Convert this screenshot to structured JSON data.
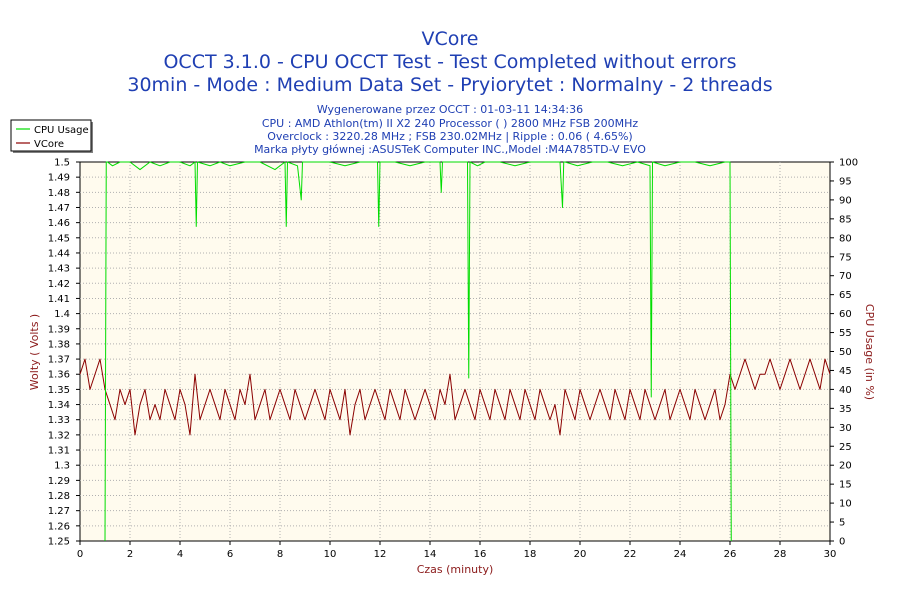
{
  "chart_data": {
    "type": "line",
    "title": "VCore",
    "subtitle_1": "OCCT 3.1.0 - CPU OCCT Test - Test Completed without errors",
    "subtitle_2": "30min - Mode : Medium Data Set - Pryiorytet : Normalny - 2 threads",
    "info": [
      "Wygenerowane przez OCCT : 01-03-11 14:34:36",
      "CPU : AMD Athlon(tm) II X2 240 Processor (  ) 2800 MHz FSB 200MHz",
      "Overclock : 3220.28 MHz ; FSB 230.02MHz | Ripple : 0.06 ( 4.65%)",
      "Marka płyty głównej :ASUSTeK Computer INC.,Model :M4A785TD-V EVO"
    ],
    "xlabel": "Czas (minuty)",
    "ylabel_left": "Wolty ( Volts )",
    "ylabel_right": "CPU Usage (in %)",
    "xlim": [
      0,
      30
    ],
    "ylim_left": [
      1.25,
      1.5
    ],
    "ylim_right": [
      0,
      100
    ],
    "x_ticks": [
      "0",
      "2",
      "4",
      "6",
      "8",
      "10",
      "12",
      "14",
      "16",
      "18",
      "20",
      "22",
      "24",
      "26",
      "28",
      "30"
    ],
    "y_left_ticks": [
      "1.25",
      "1.26",
      "1.27",
      "1.28",
      "1.29",
      "1.3",
      "1.31",
      "1.32",
      "1.33",
      "1.34",
      "1.35",
      "1.36",
      "1.37",
      "1.38",
      "1.39",
      "1.4",
      "1.41",
      "1.42",
      "1.43",
      "1.44",
      "1.45",
      "1.46",
      "1.47",
      "1.48",
      "1.49",
      "1.5"
    ],
    "y_right_ticks": [
      "0",
      "5",
      "10",
      "15",
      "20",
      "25",
      "30",
      "35",
      "40",
      "45",
      "50",
      "55",
      "60",
      "65",
      "70",
      "75",
      "80",
      "85",
      "90",
      "95",
      "100"
    ],
    "grid": true,
    "legend_position": "top-left",
    "series": [
      {
        "name": "CPU Usage",
        "color": "#00dd00",
        "axis": "right",
        "x": [
          0.0,
          1.0,
          1.05,
          1.1,
          1.3,
          1.6,
          2.0,
          2.4,
          2.8,
          3.2,
          3.6,
          4.0,
          4.4,
          4.6,
          4.65,
          4.7,
          5.2,
          5.6,
          6.0,
          6.6,
          7.2,
          7.8,
          8.2,
          8.25,
          8.3,
          8.7,
          8.85,
          8.9,
          9.4,
          10.0,
          10.6,
          11.2,
          11.9,
          11.95,
          12.0,
          12.6,
          13.2,
          13.8,
          14.4,
          14.45,
          14.5,
          15.0,
          15.5,
          15.55,
          15.6,
          15.9,
          16.2,
          16.8,
          17.4,
          18.0,
          18.6,
          19.2,
          19.3,
          19.35,
          19.4,
          19.9,
          20.5,
          21.1,
          21.7,
          22.3,
          22.8,
          22.85,
          22.9,
          23.4,
          24.0,
          24.6,
          25.2,
          25.8,
          26.0,
          26.05,
          26.1
        ],
        "y": [
          null,
          0,
          100,
          100,
          99,
          100,
          100,
          98,
          100,
          99,
          100,
          100,
          99,
          100,
          83,
          100,
          99,
          100,
          99,
          100,
          100,
          98,
          100,
          83,
          100,
          99,
          90,
          100,
          100,
          100,
          99,
          100,
          100,
          83,
          100,
          100,
          99,
          100,
          100,
          92,
          100,
          100,
          100,
          43,
          100,
          99,
          100,
          100,
          99,
          100,
          100,
          100,
          88,
          100,
          100,
          99,
          100,
          100,
          99,
          100,
          99,
          38,
          100,
          99,
          100,
          100,
          99,
          100,
          100,
          0,
          null
        ]
      },
      {
        "name": "VCore",
        "color": "#8b0000",
        "axis": "left",
        "x": [
          0.0,
          0.2,
          0.4,
          0.6,
          0.8,
          1.0,
          1.2,
          1.4,
          1.6,
          1.8,
          2.0,
          2.2,
          2.4,
          2.6,
          2.8,
          3.0,
          3.2,
          3.4,
          3.6,
          3.8,
          4.0,
          4.2,
          4.4,
          4.6,
          4.8,
          5.0,
          5.2,
          5.4,
          5.6,
          5.8,
          6.0,
          6.2,
          6.4,
          6.6,
          6.8,
          7.0,
          7.2,
          7.4,
          7.6,
          7.8,
          8.0,
          8.2,
          8.4,
          8.6,
          8.8,
          9.0,
          9.2,
          9.4,
          9.6,
          9.8,
          10.0,
          10.2,
          10.4,
          10.6,
          10.8,
          11.0,
          11.2,
          11.4,
          11.6,
          11.8,
          12.0,
          12.2,
          12.4,
          12.6,
          12.8,
          13.0,
          13.2,
          13.4,
          13.6,
          13.8,
          14.0,
          14.2,
          14.4,
          14.6,
          14.8,
          15.0,
          15.2,
          15.4,
          15.6,
          15.8,
          16.0,
          16.2,
          16.4,
          16.6,
          16.8,
          17.0,
          17.2,
          17.4,
          17.6,
          17.8,
          18.0,
          18.2,
          18.4,
          18.6,
          18.8,
          19.0,
          19.2,
          19.4,
          19.6,
          19.8,
          20.0,
          20.2,
          20.4,
          20.6,
          20.8,
          21.0,
          21.2,
          21.4,
          21.6,
          21.8,
          22.0,
          22.2,
          22.4,
          22.6,
          22.8,
          23.0,
          23.2,
          23.4,
          23.6,
          23.8,
          24.0,
          24.2,
          24.4,
          24.6,
          24.8,
          25.0,
          25.2,
          25.4,
          25.6,
          25.8,
          26.0,
          26.2,
          26.4,
          26.6,
          26.8,
          27.0,
          27.2,
          27.4,
          27.6,
          27.8,
          28.0,
          28.2,
          28.4,
          28.6,
          28.8,
          29.0,
          29.2,
          29.4,
          29.6,
          29.8,
          30.0
        ],
        "y": [
          1.36,
          1.37,
          1.35,
          1.36,
          1.37,
          1.35,
          1.34,
          1.33,
          1.35,
          1.34,
          1.35,
          1.32,
          1.34,
          1.35,
          1.33,
          1.34,
          1.33,
          1.35,
          1.34,
          1.33,
          1.35,
          1.34,
          1.32,
          1.36,
          1.33,
          1.34,
          1.35,
          1.34,
          1.33,
          1.35,
          1.34,
          1.33,
          1.35,
          1.34,
          1.36,
          1.33,
          1.34,
          1.35,
          1.33,
          1.34,
          1.35,
          1.34,
          1.33,
          1.35,
          1.34,
          1.33,
          1.34,
          1.35,
          1.34,
          1.33,
          1.35,
          1.34,
          1.33,
          1.35,
          1.32,
          1.34,
          1.35,
          1.33,
          1.34,
          1.35,
          1.34,
          1.33,
          1.35,
          1.34,
          1.33,
          1.35,
          1.34,
          1.33,
          1.34,
          1.35,
          1.34,
          1.33,
          1.35,
          1.34,
          1.36,
          1.33,
          1.34,
          1.35,
          1.34,
          1.33,
          1.35,
          1.34,
          1.33,
          1.35,
          1.34,
          1.33,
          1.35,
          1.34,
          1.33,
          1.35,
          1.34,
          1.33,
          1.35,
          1.34,
          1.33,
          1.34,
          1.32,
          1.35,
          1.34,
          1.33,
          1.35,
          1.34,
          1.33,
          1.34,
          1.35,
          1.34,
          1.33,
          1.35,
          1.34,
          1.33,
          1.35,
          1.34,
          1.33,
          1.35,
          1.34,
          1.33,
          1.34,
          1.35,
          1.33,
          1.34,
          1.35,
          1.34,
          1.33,
          1.35,
          1.34,
          1.33,
          1.34,
          1.35,
          1.33,
          1.34,
          1.36,
          1.35,
          1.36,
          1.37,
          1.36,
          1.35,
          1.36,
          1.36,
          1.37,
          1.36,
          1.35,
          1.36,
          1.37,
          1.36,
          1.35,
          1.36,
          1.37,
          1.36,
          1.35,
          1.37,
          1.36
        ]
      }
    ]
  }
}
